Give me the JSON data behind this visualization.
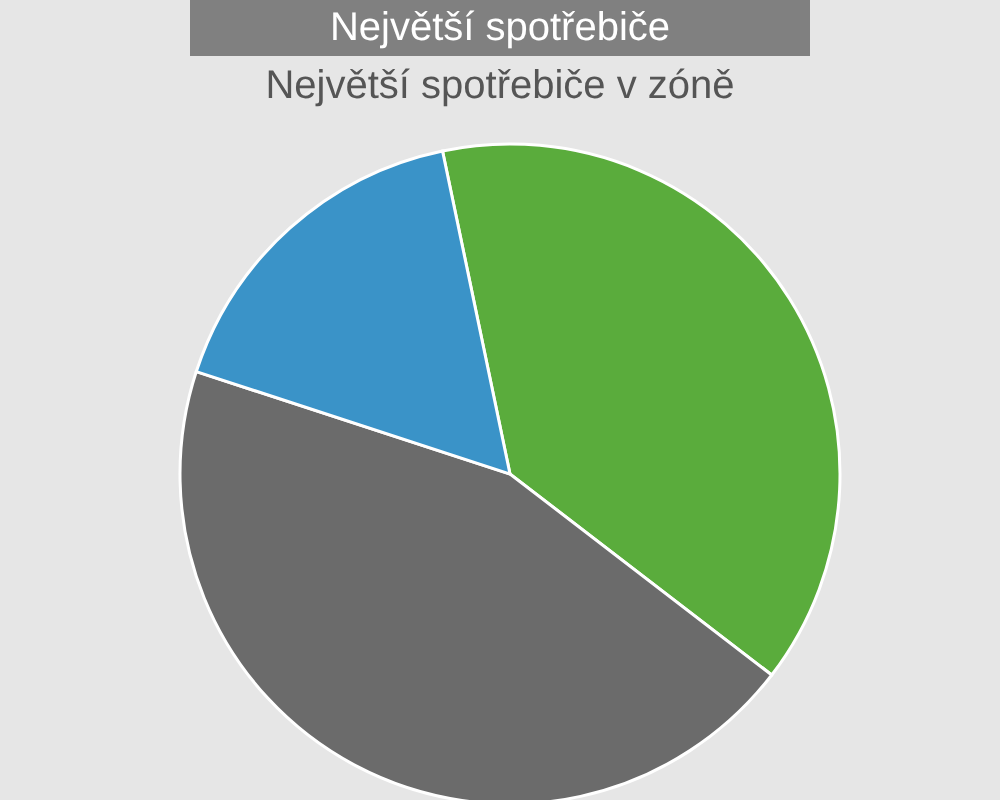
{
  "chart_data": {
    "type": "pie",
    "title": "Největší spotřebiče",
    "subtitle": "Největší spotřebiče v zóně",
    "categories": [
      null,
      null,
      null
    ],
    "values": [
      38.7,
      44.6,
      16.7
    ],
    "colors": [
      "#5aac3c",
      "#6b6b6b",
      "#3a93c8"
    ],
    "legend": false
  }
}
